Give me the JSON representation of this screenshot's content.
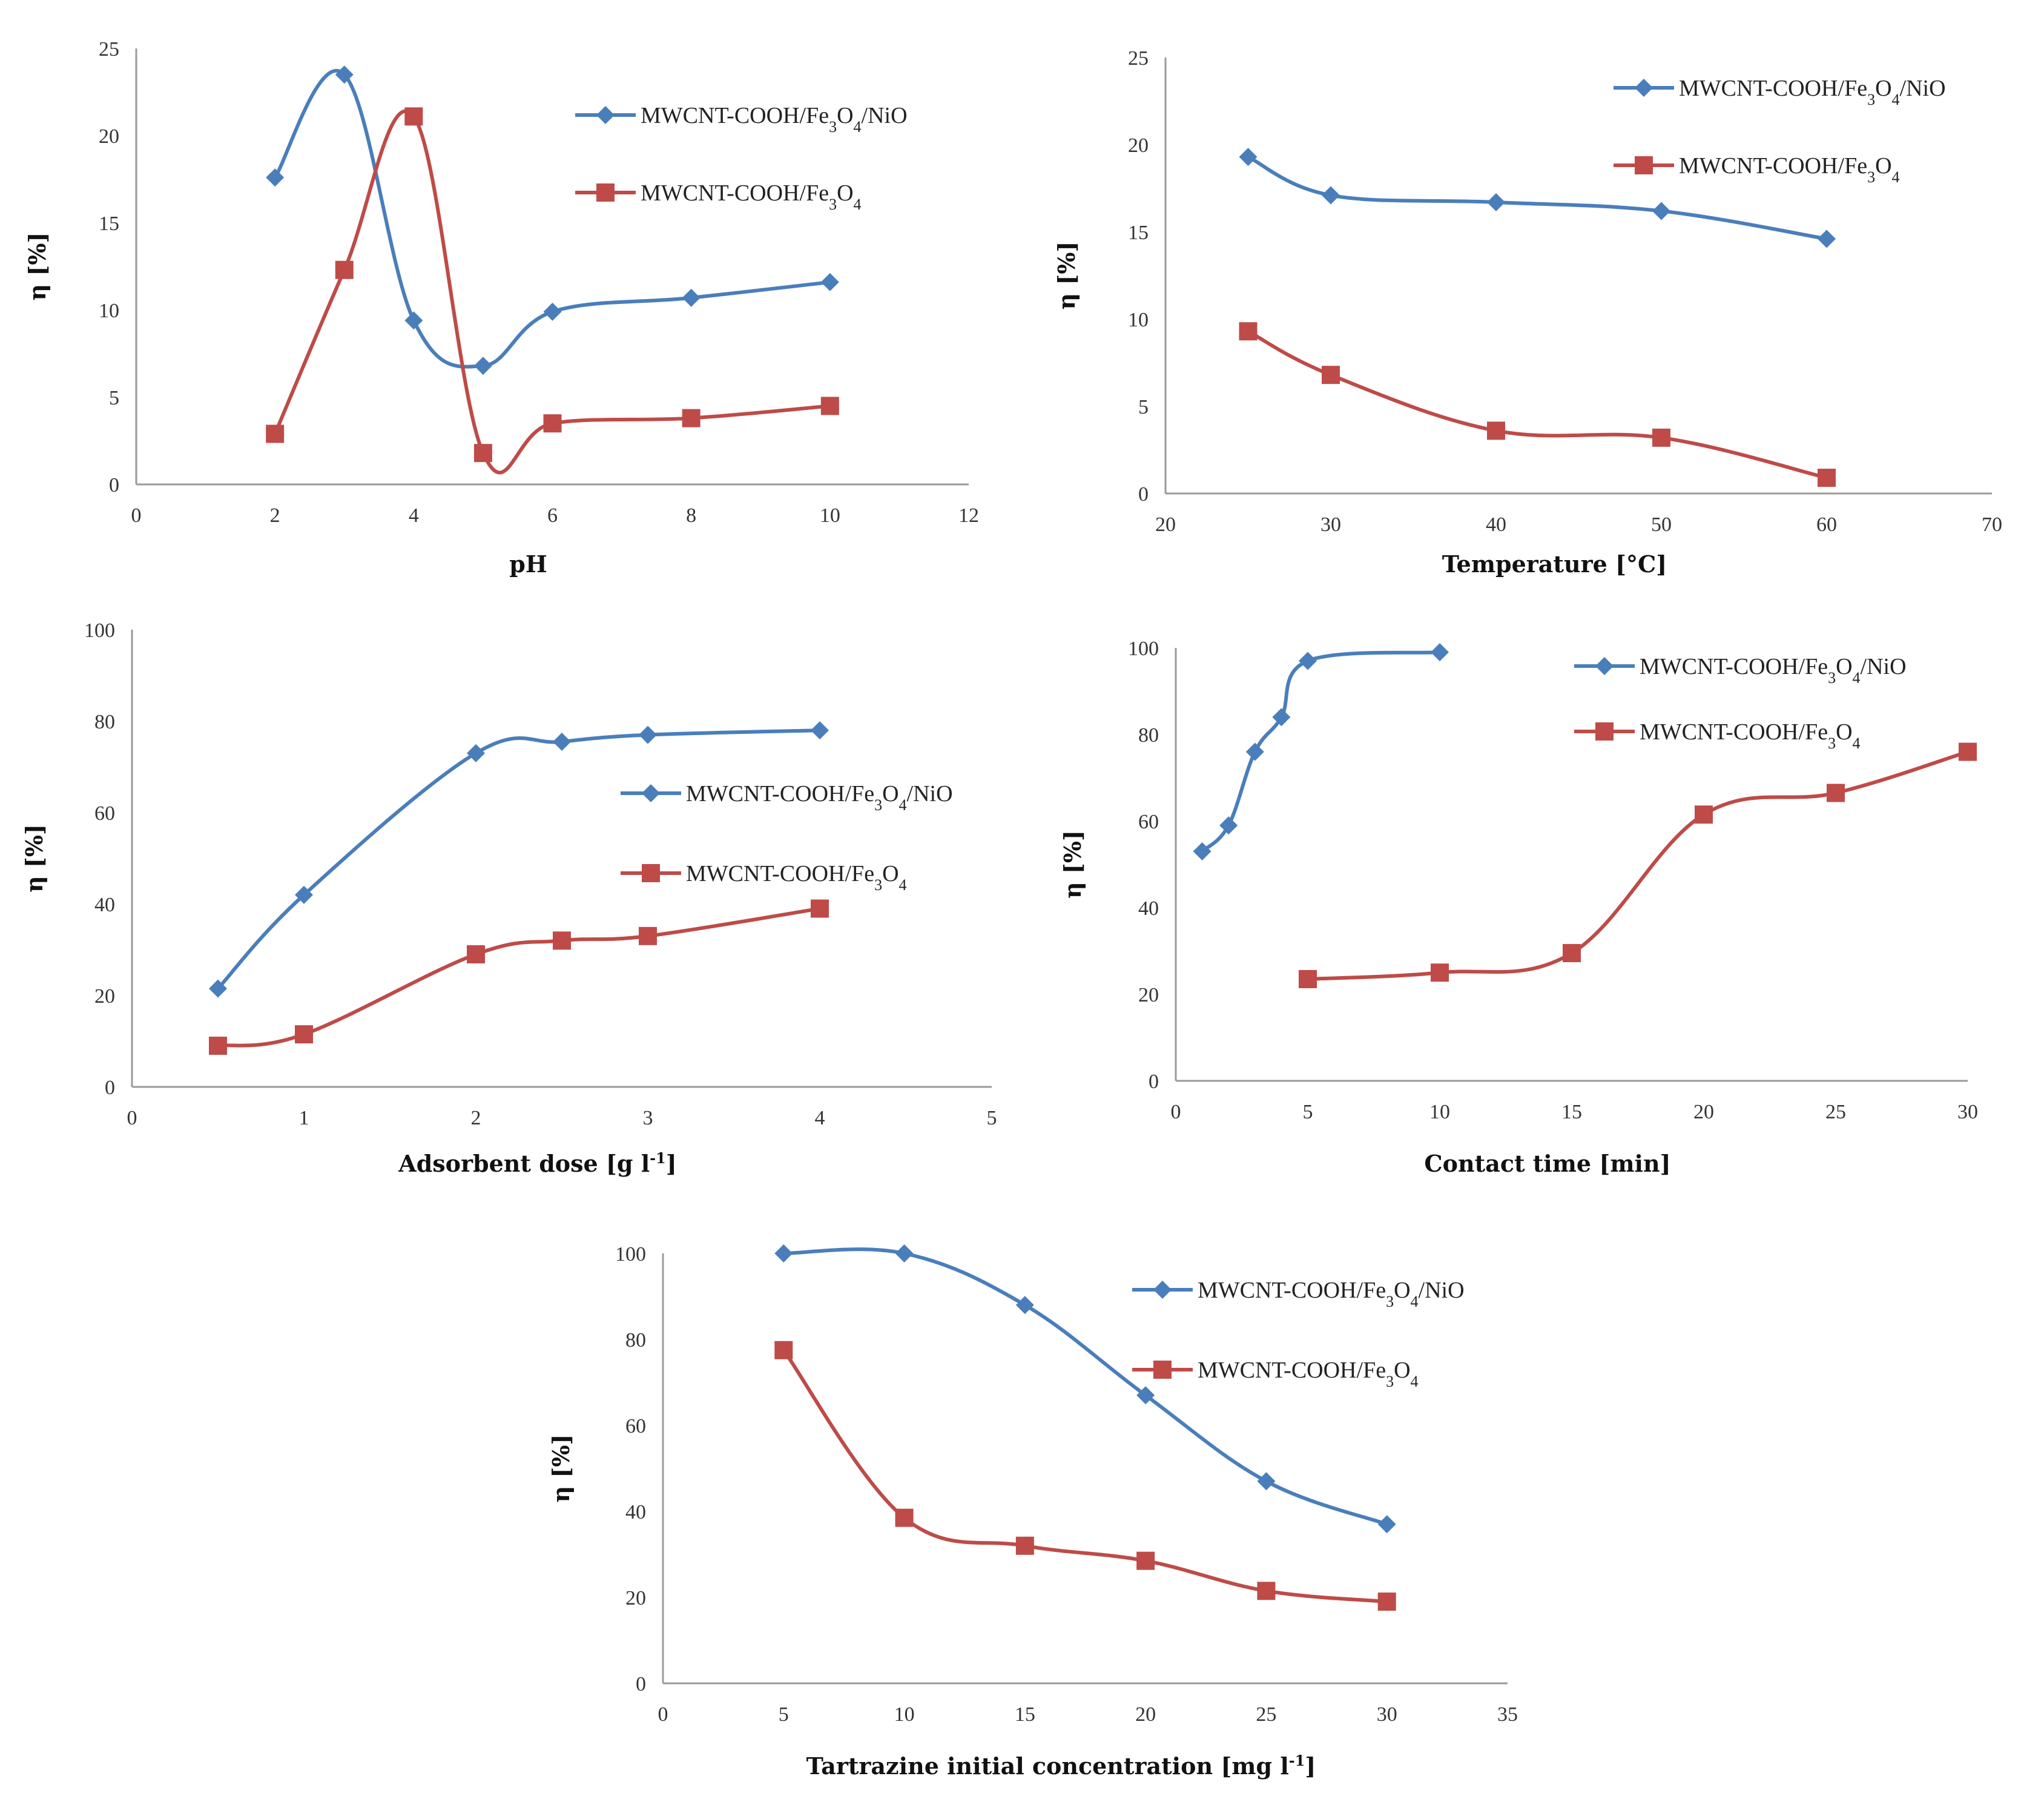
{
  "colors": {
    "blue": "#4a7ebb",
    "red": "#be4b48"
  },
  "chart_data": [
    {
      "type": "line",
      "id": "ph",
      "xlabel": "pH",
      "ylabel": "η [%]",
      "xlim": [
        0,
        12
      ],
      "ylim": [
        0,
        25
      ],
      "xticks": [
        0,
        2,
        4,
        6,
        8,
        10,
        12
      ],
      "yticks": [
        0,
        5,
        10,
        15,
        20,
        25
      ],
      "legend_position": "top-right",
      "series": [
        {
          "name": "MWCNT-COOH/Fe3O4/NiO",
          "marker": "diamond",
          "color": "blue",
          "x": [
            2,
            3,
            4,
            5,
            6,
            8,
            10
          ],
          "y": [
            17.6,
            23.5,
            9.4,
            6.8,
            9.9,
            10.7,
            11.6
          ]
        },
        {
          "name": "MWCNT-COOH/Fe3O4",
          "marker": "square",
          "color": "red",
          "x": [
            2,
            3,
            4,
            5,
            6,
            8,
            10
          ],
          "y": [
            2.9,
            12.3,
            21.1,
            1.8,
            3.5,
            3.8,
            4.5
          ]
        }
      ]
    },
    {
      "type": "line",
      "id": "temperature",
      "xlabel": "Temperature  [°C]",
      "ylabel": "η [%]",
      "xlim": [
        20,
        70
      ],
      "ylim": [
        0,
        25
      ],
      "xticks": [
        20,
        30,
        40,
        50,
        60,
        70
      ],
      "yticks": [
        0,
        5,
        10,
        15,
        20,
        25
      ],
      "legend_position": "top-right",
      "series": [
        {
          "name": "MWCNT-COOH/Fe3O4/NiO",
          "marker": "diamond",
          "color": "blue",
          "x": [
            25,
            30,
            40,
            50,
            60
          ],
          "y": [
            19.3,
            17.1,
            16.7,
            16.2,
            14.6
          ]
        },
        {
          "name": "MWCNT-COOH/Fe3O4",
          "marker": "square",
          "color": "red",
          "x": [
            25,
            30,
            40,
            50,
            60
          ],
          "y": [
            9.3,
            6.8,
            3.6,
            3.2,
            0.9
          ]
        }
      ]
    },
    {
      "type": "line",
      "id": "dose",
      "xlabel": "Adsorbent  dose  [g l-1]",
      "ylabel": "η [%]",
      "xlim": [
        0,
        5
      ],
      "ylim": [
        0,
        100
      ],
      "xticks": [
        0,
        1,
        2,
        3,
        4,
        5
      ],
      "yticks": [
        0,
        20,
        40,
        60,
        80,
        100
      ],
      "legend_position": "middle-right",
      "series": [
        {
          "name": "MWCNT-COOH/Fe3O4/NiO",
          "marker": "diamond",
          "color": "blue",
          "x": [
            0.5,
            1,
            2,
            2.5,
            3,
            4
          ],
          "y": [
            21.5,
            42,
            73,
            75.5,
            77,
            78
          ]
        },
        {
          "name": "MWCNT-COOH/Fe3O4",
          "marker": "square",
          "color": "red",
          "x": [
            0.5,
            1,
            2,
            2.5,
            3,
            4
          ],
          "y": [
            9,
            11.5,
            29,
            32,
            33,
            39
          ]
        }
      ]
    },
    {
      "type": "line",
      "id": "time",
      "xlabel": "Contact  time [min]",
      "ylabel": "η [%]",
      "xlim": [
        0,
        30
      ],
      "ylim": [
        0,
        100
      ],
      "xticks": [
        0,
        5,
        10,
        15,
        20,
        25,
        30
      ],
      "yticks": [
        0,
        20,
        40,
        60,
        80,
        100
      ],
      "legend_position": "top-right",
      "series": [
        {
          "name": "MWCNT-COOH/Fe3O4/NiO",
          "marker": "diamond",
          "color": "blue",
          "x": [
            1,
            2,
            3,
            4,
            5,
            10
          ],
          "y": [
            53,
            59,
            76,
            84,
            97,
            99
          ]
        },
        {
          "name": "MWCNT-COOH/Fe3O4",
          "marker": "square",
          "color": "red",
          "x": [
            5,
            10,
            15,
            20,
            25,
            30
          ],
          "y": [
            23.5,
            25,
            29.5,
            61.5,
            66.5,
            76
          ]
        }
      ]
    },
    {
      "type": "line",
      "id": "concentration",
      "xlabel": "Tartrazine initial concentration [mg l-1]",
      "ylabel": "η [%]",
      "xlim": [
        0,
        35
      ],
      "ylim": [
        0,
        100
      ],
      "xticks": [
        0,
        5,
        10,
        15,
        20,
        25,
        30,
        35
      ],
      "yticks": [
        0,
        20,
        40,
        60,
        80,
        100
      ],
      "legend_position": "top-right",
      "series": [
        {
          "name": "MWCNT-COOH/Fe3O4/NiO",
          "marker": "diamond",
          "color": "blue",
          "x": [
            5,
            10,
            15,
            20,
            25,
            30
          ],
          "y": [
            100,
            100,
            88,
            67,
            47,
            37
          ]
        },
        {
          "name": "MWCNT-COOH/Fe3O4",
          "marker": "square",
          "color": "red",
          "x": [
            5,
            10,
            15,
            20,
            25,
            30
          ],
          "y": [
            77.5,
            38.5,
            32,
            28.5,
            21.5,
            19
          ]
        }
      ]
    }
  ]
}
